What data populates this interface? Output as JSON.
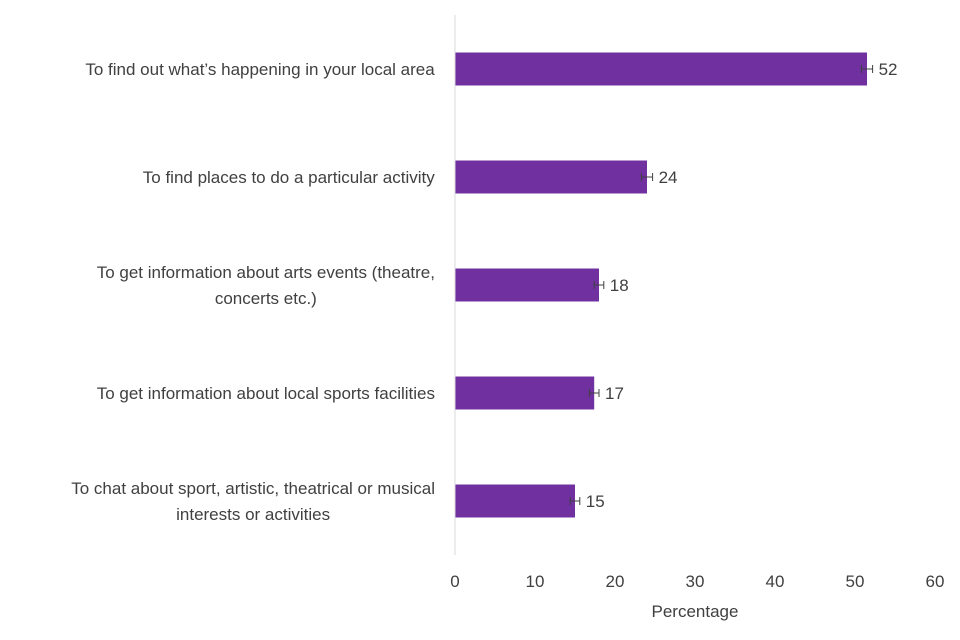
{
  "chart_data": {
    "type": "bar",
    "orientation": "horizontal",
    "title": "",
    "xlabel": "Percentage",
    "ylabel": "",
    "xlim": [
      0,
      60
    ],
    "xticks": [
      0,
      10,
      20,
      30,
      40,
      50,
      60
    ],
    "grid": false,
    "legend": "none",
    "bar_color": "#7030A0",
    "error_bar_color": "#404040",
    "categories": [
      [
        "To find out what’s happening in your local area"
      ],
      [
        "To find places to do a particular activity"
      ],
      [
        "To get information about arts events (theatre,",
        "concerts etc.)"
      ],
      [
        "To get information about local sports facilities"
      ],
      [
        "To chat about sport, artistic, theatrical or musical",
        "interests or activities"
      ]
    ],
    "values": [
      51.5,
      24,
      18,
      17.4,
      15
    ],
    "value_labels": [
      "52",
      "24",
      "18",
      "17",
      "15"
    ],
    "error_margin": [
      0.7,
      0.7,
      0.6,
      0.6,
      0.6
    ]
  }
}
